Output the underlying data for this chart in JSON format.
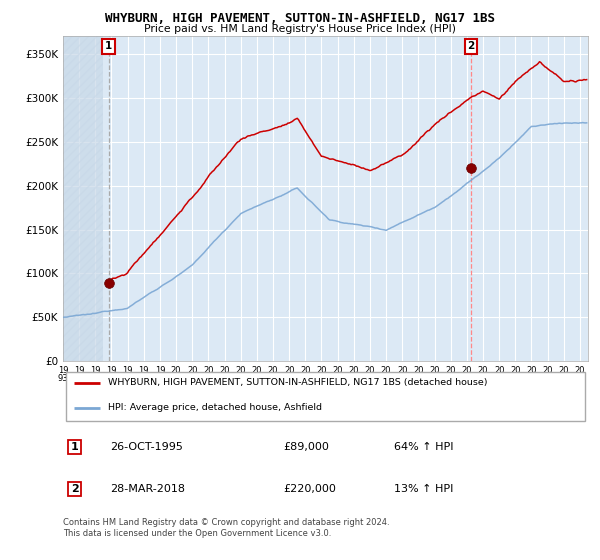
{
  "title": "WHYBURN, HIGH PAVEMENT, SUTTON-IN-ASHFIELD, NG17 1BS",
  "subtitle": "Price paid vs. HM Land Registry's House Price Index (HPI)",
  "legend_line1": "WHYBURN, HIGH PAVEMENT, SUTTON-IN-ASHFIELD, NG17 1BS (detached house)",
  "legend_line2": "HPI: Average price, detached house, Ashfield",
  "annotation1_date": "26-OCT-1995",
  "annotation1_price": "£89,000",
  "annotation1_hpi": "64% ↑ HPI",
  "annotation2_date": "28-MAR-2018",
  "annotation2_price": "£220,000",
  "annotation2_hpi": "13% ↑ HPI",
  "footnote_line1": "Contains HM Land Registry data © Crown copyright and database right 2024.",
  "footnote_line2": "This data is licensed under the Open Government Licence v3.0.",
  "red_color": "#cc0000",
  "blue_color": "#7ba7d4",
  "dashed_line_color": "#ff8888",
  "background_color": "#dce9f5",
  "grid_color": "#ffffff",
  "ylim": [
    0,
    370000
  ],
  "xlim_start": 1993.0,
  "xlim_end": 2025.5,
  "sale1_x": 1995.82,
  "sale1_y": 89000,
  "sale2_x": 2018.25,
  "sale2_y": 220000,
  "yticks": [
    0,
    50000,
    100000,
    150000,
    200000,
    250000,
    300000,
    350000
  ],
  "ylabels": [
    "£0",
    "£50K",
    "£100K",
    "£150K",
    "£200K",
    "£250K",
    "£300K",
    "£350K"
  ]
}
